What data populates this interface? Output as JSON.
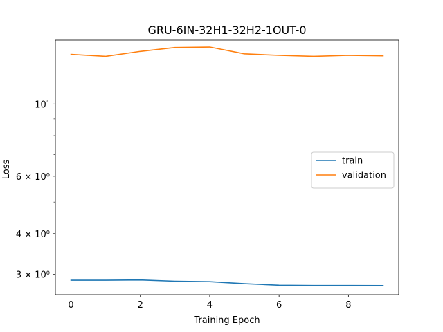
{
  "chart_data": {
    "type": "line",
    "title": "GRU-6IN-32H1-32H2-1OUT-0",
    "xlabel": "Training Epoch",
    "ylabel": "Loss",
    "yscale": "log",
    "xlim": [
      -0.45,
      9.45
    ],
    "ylim": [
      2.6,
      15.7
    ],
    "x": [
      0,
      1,
      2,
      3,
      4,
      5,
      6,
      7,
      8,
      9
    ],
    "xticks": [
      0,
      2,
      4,
      6,
      8
    ],
    "yticks": [
      {
        "value": 3,
        "label": "3 × 10⁰"
      },
      {
        "value": 4,
        "label": "4 × 10⁰"
      },
      {
        "value": 6,
        "label": "6 × 10⁰"
      },
      {
        "value": 10,
        "label": "10¹"
      }
    ],
    "yminor_ticks": [
      5,
      7,
      8,
      9
    ],
    "legend_position": "center-right",
    "grid": false,
    "series": [
      {
        "name": "train",
        "color": "#1f77b4",
        "values": [
          2.88,
          2.88,
          2.885,
          2.86,
          2.85,
          2.81,
          2.78,
          2.775,
          2.775,
          2.773
        ]
      },
      {
        "name": "validation",
        "color": "#ff7f0e",
        "values": [
          14.2,
          14.0,
          14.5,
          14.9,
          14.95,
          14.25,
          14.1,
          14.0,
          14.1,
          14.05
        ]
      }
    ]
  }
}
